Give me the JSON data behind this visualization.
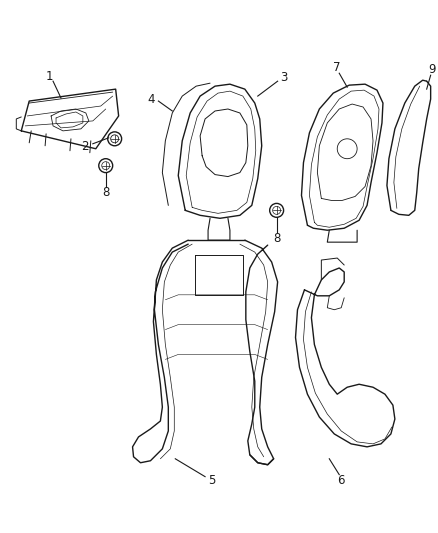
{
  "background_color": "#ffffff",
  "figsize": [
    4.38,
    5.33
  ],
  "dpi": 100,
  "line_color": "#1a1a1a",
  "line_width": 1.0,
  "label_fontsize": 8.5
}
